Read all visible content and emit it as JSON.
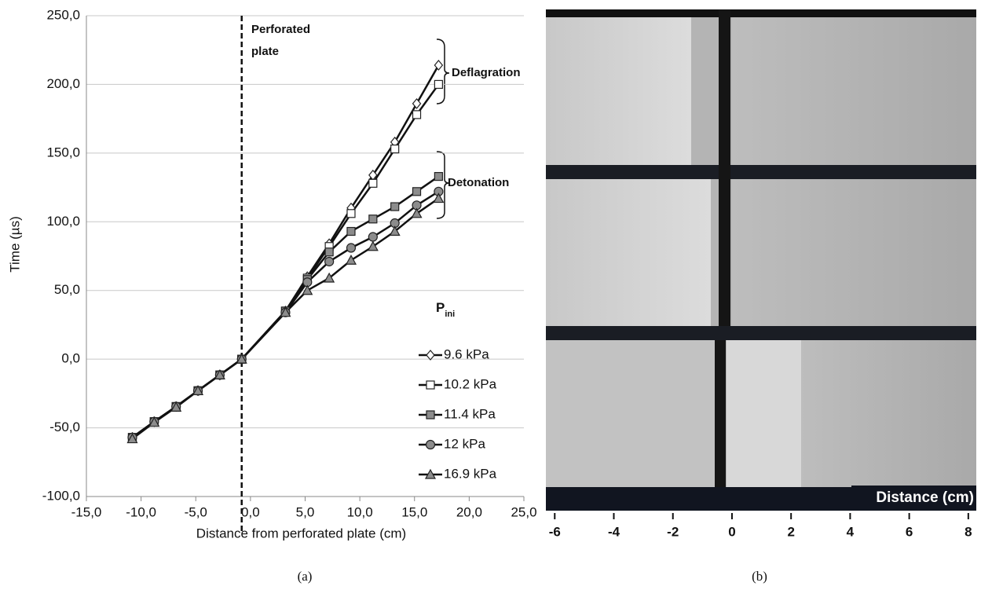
{
  "chart_data": [
    {
      "type": "line",
      "xlabel": "Distance from perforated plate (cm)",
      "ylabel": "Time (µs)",
      "caption": "(a)",
      "annotations": [
        "Perforated",
        "plate",
        "Deflagration",
        "Detonation"
      ],
      "plate_x": -0.8,
      "legend_title": "P",
      "legend_title_subscript": "ini",
      "legend": "right",
      "grid": true,
      "xlim": [
        -15,
        25
      ],
      "ylim": [
        -100,
        250
      ],
      "xticks": [
        {
          "value": -15,
          "label": "-15,0"
        },
        {
          "value": -10,
          "label": "-10,0"
        },
        {
          "value": -5,
          "label": "-5,0"
        },
        {
          "value": 0,
          "label": "0,0"
        },
        {
          "value": 5,
          "label": "5,0"
        },
        {
          "value": 10,
          "label": "10,0"
        },
        {
          "value": 15,
          "label": "15,0"
        },
        {
          "value": 20,
          "label": "20,0"
        },
        {
          "value": 25,
          "label": "25,0"
        }
      ],
      "yticks": [
        {
          "value": -100,
          "label": "-100,0"
        },
        {
          "value": -50,
          "label": "-50,0"
        },
        {
          "value": 0,
          "label": "0,0"
        },
        {
          "value": 50,
          "label": "50,0"
        },
        {
          "value": 100,
          "label": "100,0"
        },
        {
          "value": 150,
          "label": "150,0"
        },
        {
          "value": 200,
          "label": "200,0"
        },
        {
          "value": 250,
          "label": "250,0"
        }
      ],
      "x": [
        -10.8,
        -8.8,
        -6.8,
        -4.8,
        -2.8,
        -0.8,
        3.2,
        5.2,
        7.2,
        9.2,
        11.2,
        13.2,
        15.2,
        17.2
      ],
      "series": [
        {
          "name": "9.6 kPa",
          "color": "#ffffff",
          "marker": "diamond",
          "values": [
            -57,
            -45.5,
            -34.5,
            -23,
            -11.5,
            0,
            35,
            60,
            84,
            110,
            134,
            158,
            186,
            214
          ]
        },
        {
          "name": "10.2 kPa",
          "color": "#ffffff",
          "marker": "square",
          "values": [
            -57,
            -45.5,
            -34.5,
            -23,
            -11.5,
            0,
            35,
            59,
            82,
            106,
            128,
            153,
            178,
            200
          ]
        },
        {
          "name": "11.4 kPa",
          "color": "#8c8c8c",
          "marker": "square",
          "values": [
            -57,
            -45.5,
            -34.5,
            -23,
            -11.5,
            0,
            35,
            58,
            78,
            93,
            102,
            111,
            122,
            133
          ]
        },
        {
          "name": "12 kPa",
          "color": "#8c8c8c",
          "marker": "circle",
          "values": [
            -57,
            -45.5,
            -34.5,
            -23,
            -11.5,
            0,
            34,
            56,
            71,
            81,
            89,
            99,
            112,
            122
          ]
        },
        {
          "name": "16.9 kPa",
          "color": "#8c8c8c",
          "marker": "triangle",
          "values": [
            -58,
            -46,
            -35,
            -23,
            -11.5,
            0,
            34,
            50,
            59,
            72,
            82,
            93,
            106,
            117
          ]
        }
      ]
    },
    {
      "type": "image",
      "xlabel": "Distance (cm)",
      "caption": "(b)",
      "xlim": [
        -6.3,
        8.27
      ],
      "xticks": [
        -6,
        -4,
        -2,
        0,
        2,
        4,
        6,
        8
      ]
    }
  ]
}
